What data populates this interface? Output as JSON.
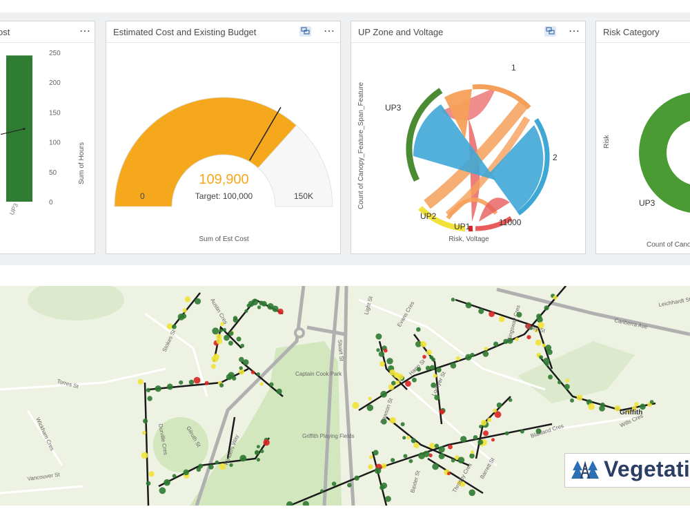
{
  "cards": {
    "hours": {
      "title": "ost",
      "y_axis_label": "Sum of Hours",
      "x_tick": "UP3"
    },
    "budget": {
      "title": "Estimated Cost and Existing Budget",
      "value": "109,900",
      "target_text": "Target: 100,000",
      "min_label": "0",
      "max_label": "150K",
      "footer": "Sum of Est Cost"
    },
    "zone": {
      "title": "UP Zone and Voltage",
      "y_axis_label": "Count of Canopy_Feature_Span_Feature",
      "x_axis_label": "Risk, Voltage",
      "labels": [
        "1",
        "2",
        "11000",
        "UP1",
        "UP2",
        "UP3"
      ]
    },
    "risk": {
      "title": "Risk Category",
      "y_axis_label": "Risk",
      "segment_label": "UP3",
      "footer": "Count of Cano"
    }
  },
  "chart_data": [
    {
      "type": "bar",
      "title": "ost",
      "categories": [
        "UP3"
      ],
      "values": [
        245
      ],
      "ylabel": "Sum of Hours",
      "ylim": [
        0,
        250
      ],
      "y_ticks": [
        0,
        50,
        100,
        150,
        200,
        250
      ],
      "color": "#2e7d32",
      "overlay_line_value": 122
    },
    {
      "type": "gauge",
      "title": "Estimated Cost and Existing Budget",
      "value": 109900,
      "target": 100000,
      "min": 0,
      "max": 150000,
      "fill_color": "#f5a81c",
      "xlabel": "Sum of Est Cost"
    },
    {
      "type": "chord",
      "title": "UP Zone and Voltage",
      "nodes": [
        "1",
        "2",
        "11000",
        "UP1",
        "UP2",
        "UP3"
      ],
      "xlabel": "Risk, Voltage",
      "ylabel": "Count of Canopy_Feature_Span_Feature"
    },
    {
      "type": "pie",
      "title": "Risk Category",
      "categories": [
        "UP3"
      ],
      "values": [
        1
      ],
      "ylabel": "Risk",
      "color": "#4a9b34"
    }
  ],
  "map": {
    "streets": [
      "Stokes St",
      "Torres St",
      "Wickham Cres",
      "Vancouver St",
      "Durville Cres",
      "Gilruth St",
      "Flinders Way",
      "Captain Cook Park",
      "Griffith Playing Fields",
      "Light St",
      "Evans Cres",
      "Hann St",
      "Lockyer St",
      "Rawson St",
      "Canberra Ave",
      "Blaxland Cres",
      "Griffith",
      "Leichhardt St",
      "Stuart St",
      "Austin Cres",
      "Baxter St",
      "Barrett St",
      "Throsby Cres",
      "Oxley St",
      "Wills Cres",
      "Kingsway Cres"
    ],
    "colors": {
      "background": "#eef2e2",
      "park": "#d3e7bf",
      "road": "#aaaaaa",
      "line": "#1a1a1a",
      "tree": "#2f7a32",
      "risk_med": "#f0e23a",
      "risk_high": "#d92323"
    }
  },
  "badge": {
    "text": "Vegetati",
    "logo_icon": "tree-tower-icon"
  }
}
